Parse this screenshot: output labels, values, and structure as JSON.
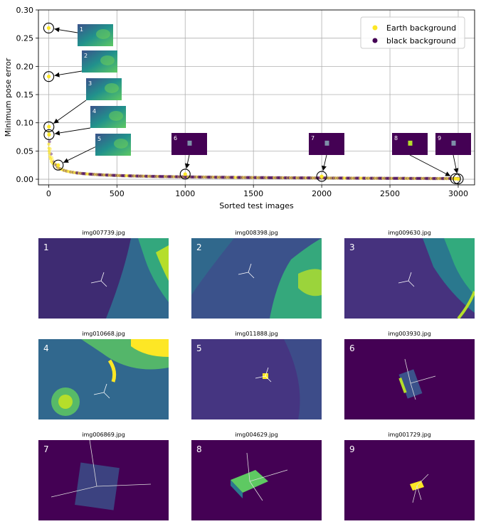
{
  "chart_data": {
    "type": "scatter",
    "title": "",
    "xlabel": "Sorted test images",
    "ylabel": "Minimum pose error",
    "xlim": [
      -75,
      3120
    ],
    "ylim": [
      -0.01,
      0.3
    ],
    "xticks": [
      0,
      500,
      1000,
      1500,
      2000,
      2500,
      3000
    ],
    "yticks": [
      0.0,
      0.05,
      0.1,
      0.15,
      0.2,
      0.25,
      0.3
    ],
    "xtick_labels": [
      "0",
      "500",
      "1000",
      "1500",
      "2000",
      "2500",
      "3000"
    ],
    "ytick_labels": [
      "0.00",
      "0.05",
      "0.10",
      "0.15",
      "0.20",
      "0.25",
      "0.30"
    ],
    "grid": true,
    "legend_position": "top-right",
    "series": [
      {
        "name": "Earth background",
        "color": "#fde725"
      },
      {
        "name": "black background",
        "color": "#440154"
      }
    ],
    "highlighted_points": [
      {
        "label": "1",
        "x": 0,
        "y": 0.268
      },
      {
        "label": "2",
        "x": 1,
        "y": 0.182
      },
      {
        "label": "3",
        "x": 2,
        "y": 0.093
      },
      {
        "label": "4",
        "x": 3,
        "y": 0.079
      },
      {
        "label": "5",
        "x": 70,
        "y": 0.025
      },
      {
        "label": "6",
        "x": 1000,
        "y": 0.009
      },
      {
        "label": "7",
        "x": 2000,
        "y": 0.005
      },
      {
        "label": "8",
        "x": 2980,
        "y": 0.001
      },
      {
        "label": "9",
        "x": 3000,
        "y": 0.0005
      }
    ]
  },
  "gallery": [
    {
      "num": "1",
      "title": "img007739.jpg",
      "bg": "earth"
    },
    {
      "num": "2",
      "title": "img008398.jpg",
      "bg": "earth"
    },
    {
      "num": "3",
      "title": "img009630.jpg",
      "bg": "earth"
    },
    {
      "num": "4",
      "title": "img010668.jpg",
      "bg": "earth"
    },
    {
      "num": "5",
      "title": "img011888.jpg",
      "bg": "earth"
    },
    {
      "num": "6",
      "title": "img003930.jpg",
      "bg": "black"
    },
    {
      "num": "7",
      "title": "img006869.jpg",
      "bg": "black"
    },
    {
      "num": "8",
      "title": "img004629.jpg",
      "bg": "black"
    },
    {
      "num": "9",
      "title": "img001729.jpg",
      "bg": "black"
    }
  ]
}
